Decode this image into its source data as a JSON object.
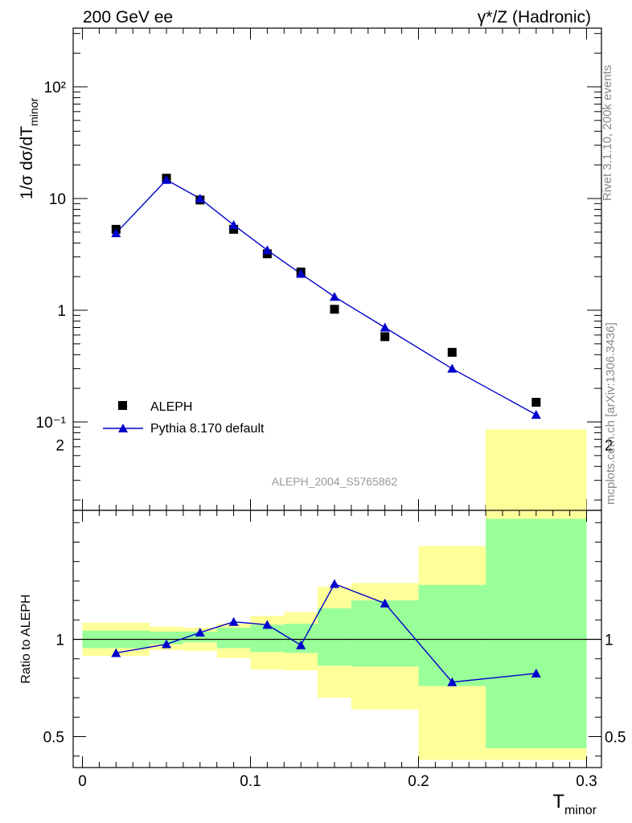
{
  "header": {
    "left_title": "200 GeV ee",
    "right_title": "γ*/Z (Hadronic)"
  },
  "side_labels": {
    "rivet": "Rivet 3.1.10,  200k events",
    "mcplots": "mcplots.cern.ch [arXiv:1306.3436]"
  },
  "watermark": "ALEPH_2004_S5765862",
  "colors": {
    "mc": "#0000cc",
    "data": "#000000",
    "band_inner": "#99ff99",
    "band_outer": "#ffff99"
  },
  "chart_data": [
    {
      "type": "scatter",
      "ylabel": "1/σ  dσ/dT",
      "ylabel_sub": "minor",
      "yscale": "log",
      "ylim": [
        0.02,
        320
      ],
      "xlim": [
        -0.01,
        0.3
      ],
      "y_tick_labels": [
        "10⁻¹",
        "1",
        "10",
        "10²"
      ],
      "series": [
        {
          "name": "ALEPH",
          "marker": "square",
          "x": [
            0.02,
            0.05,
            0.07,
            0.09,
            0.11,
            0.13,
            0.15,
            0.18,
            0.22,
            0.27
          ],
          "y": [
            5.3,
            15.2,
            9.7,
            5.3,
            3.2,
            2.2,
            1.02,
            0.58,
            0.42,
            0.15
          ]
        },
        {
          "name": "Pythia 8.170 default",
          "marker": "triangle",
          "line": true,
          "x": [
            0.02,
            0.05,
            0.07,
            0.09,
            0.11,
            0.13,
            0.15,
            0.18,
            0.22,
            0.27
          ],
          "y": [
            4.9,
            14.7,
            10.0,
            5.8,
            3.45,
            2.12,
            1.32,
            0.7,
            0.3,
            0.116
          ]
        }
      ],
      "legend_position": "bottom-left"
    },
    {
      "type": "scatter",
      "ylabel": "Ratio to ALEPH",
      "xlabel": "T",
      "xlabel_sub": "minor",
      "ylim": [
        0.35,
        2.35
      ],
      "xlim": [
        -0.01,
        0.3
      ],
      "x_tick_labels": [
        "0",
        "0.1",
        "0.2",
        "0.3"
      ],
      "y_tick_labels": [
        "0.5",
        "1",
        "2"
      ],
      "reference_line": 1,
      "bands": {
        "bin_edges": [
          0,
          0.04,
          0.06,
          0.08,
          0.1,
          0.12,
          0.14,
          0.16,
          0.2,
          0.24,
          0.3
        ],
        "inner_low": [
          0.955,
          0.975,
          0.985,
          0.955,
          0.935,
          0.93,
          0.865,
          0.86,
          0.76,
          0.44
        ],
        "inner_high": [
          1.045,
          1.04,
          1.04,
          1.06,
          1.075,
          1.08,
          1.16,
          1.2,
          1.28,
          1.62
        ],
        "outer_low": [
          0.915,
          0.945,
          0.94,
          0.905,
          0.845,
          0.84,
          0.7,
          0.64,
          0.38,
          0.38
        ],
        "outer_high": [
          1.085,
          1.065,
          1.06,
          1.08,
          1.12,
          1.14,
          1.27,
          1.29,
          1.48,
          2.08
        ]
      },
      "series": [
        {
          "name": "Pythia 8.170 default",
          "x": [
            0.02,
            0.05,
            0.07,
            0.09,
            0.11,
            0.13,
            0.15,
            0.18,
            0.22,
            0.27
          ],
          "y": [
            0.93,
            0.975,
            1.035,
            1.09,
            1.075,
            0.97,
            1.285,
            1.185,
            0.78,
            0.825
          ]
        }
      ]
    }
  ]
}
